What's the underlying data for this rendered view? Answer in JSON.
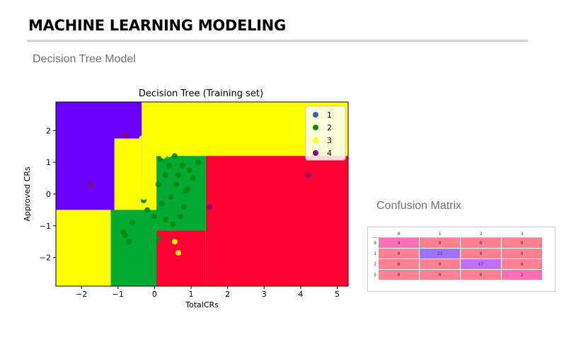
{
  "page": {
    "title": "MACHINE LEARNING MODELING",
    "subtitle": "Decision Tree Model",
    "cm_title": "Confusion Matrix"
  },
  "colors": {
    "class1": "#6a00ff",
    "class2": "#00aa33",
    "class3": "#ffff00",
    "class4": "#ff0033",
    "point1": "#2b6cb0",
    "point2": "#0a8a0a",
    "point3": "#ffff00",
    "point4": "#8b0a6a",
    "cm_hot": "#ff6fb5",
    "cm_cool": "#a070ff",
    "cm_mid": "#c070ff",
    "cm_base": "#ff8090"
  },
  "chart_data": {
    "type": "scatter",
    "title": "Decision Tree (Training set)",
    "xlabel": "TotalCRs",
    "ylabel": "Approved CRs",
    "xlim": [
      -2.7,
      5.3
    ],
    "ylim": [
      -2.9,
      2.9
    ],
    "xticks": [
      -2,
      -1,
      0,
      1,
      2,
      3,
      4,
      5
    ],
    "yticks": [
      -2,
      -1,
      0,
      1,
      2
    ],
    "legend_position": "top-right",
    "regions": [
      {
        "class": 1,
        "x": [
          -2.7,
          -0.35
        ],
        "y": [
          -0.5,
          2.9
        ]
      },
      {
        "class": 3,
        "x": [
          -0.35,
          5.3
        ],
        "y": [
          1.2,
          2.9
        ]
      },
      {
        "class": 4,
        "x": [
          1.4,
          5.3
        ],
        "y": [
          -2.9,
          1.2
        ]
      },
      {
        "class": 3,
        "x": [
          -1.1,
          -0.35
        ],
        "y": [
          -0.5,
          1.75
        ]
      },
      {
        "class": 3,
        "x": [
          -0.35,
          0.05
        ],
        "y": [
          -0.5,
          1.2
        ]
      },
      {
        "class": 2,
        "x": [
          0.05,
          1.4
        ],
        "y": [
          -1.15,
          1.2
        ]
      },
      {
        "class": 2,
        "x": [
          -1.2,
          0.05
        ],
        "y": [
          -2.9,
          -0.5
        ]
      },
      {
        "class": 4,
        "x": [
          0.05,
          1.4
        ],
        "y": [
          -2.9,
          -1.15
        ]
      },
      {
        "class": 3,
        "x": [
          -2.7,
          -1.2
        ],
        "y": [
          -2.9,
          -0.5
        ]
      }
    ],
    "series": [
      {
        "name": "1",
        "x": [],
        "y": []
      },
      {
        "name": "2",
        "x": [
          0.1,
          0.3,
          0.55,
          0.85,
          0.95,
          1.05,
          0.65,
          0.75,
          0.45,
          0.2,
          0.0,
          -0.3,
          -0.6,
          -0.8,
          -0.85,
          -0.7,
          0.1,
          0.4,
          0.6,
          0.9,
          1.2,
          0.3,
          0.5,
          0.8,
          -0.2,
          0.15,
          0.7
        ],
        "y": [
          0.3,
          0.6,
          1.2,
          0.1,
          0.75,
          0.5,
          0.6,
          0.9,
          -0.1,
          -0.3,
          -0.7,
          -0.2,
          -0.9,
          -1.3,
          -1.2,
          -1.5,
          -1.4,
          0.9,
          0.3,
          0.15,
          1.0,
          -0.8,
          -0.95,
          -0.4,
          -0.5,
          1.1,
          -0.7
        ]
      },
      {
        "name": "3",
        "x": [
          -1.6,
          -0.7,
          -0.6,
          -0.4,
          -0.5,
          -0.8,
          -0.9,
          -0.55,
          -0.35,
          -0.2,
          -0.1,
          0.0,
          0.2,
          0.4,
          0.7,
          -0.3,
          -0.45,
          -0.65,
          -0.5,
          -0.25,
          0.55,
          0.65,
          -0.15,
          -0.6,
          0.25
        ],
        "y": [
          -1.4,
          0.1,
          0.2,
          0.4,
          0.55,
          0.7,
          0.5,
          1.0,
          1.75,
          1.5,
          1.3,
          1.9,
          1.3,
          1.25,
          1.9,
          -0.1,
          -0.3,
          -0.15,
          0.55,
          0.9,
          -1.5,
          -1.85,
          1.6,
          1.4,
          1.2
        ]
      },
      {
        "name": "4",
        "x": [
          -1.75,
          -0.8,
          1.5,
          4.2
        ],
        "y": [
          0.3,
          1.85,
          -0.4,
          0.6
        ]
      }
    ]
  },
  "confusion_matrix": {
    "col_headers": [
      "0",
      "1",
      "2",
      "3"
    ],
    "rows": [
      {
        "label": "0",
        "values": [
          "4",
          "0",
          "0",
          "0"
        ]
      },
      {
        "label": "1",
        "values": [
          "0",
          "22",
          "0",
          "0"
        ]
      },
      {
        "label": "2",
        "values": [
          "0",
          "0",
          "17",
          "0"
        ]
      },
      {
        "label": "3",
        "values": [
          "0",
          "0",
          "0",
          "2"
        ]
      }
    ]
  }
}
